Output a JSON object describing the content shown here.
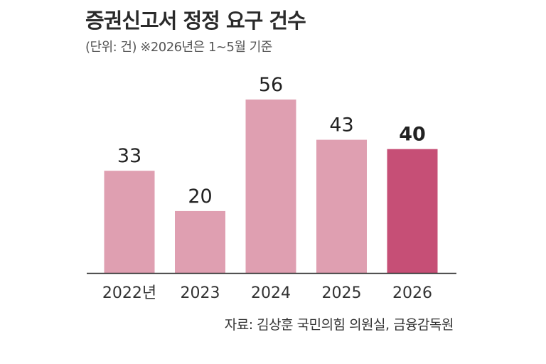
{
  "title": "증권신고서 정정 요구 건수",
  "subtitle": "(단위: 건) ※2026년은 1~5월 기준",
  "source": "자료: 김상훈 국민의힘 의원실, 금융감독원",
  "colors": {
    "bar": "#df9fb1",
    "highlight": "#c64f76",
    "axis": "#333333"
  },
  "chart_data": {
    "type": "bar",
    "categories": [
      "2022년",
      "2023",
      "2024",
      "2025",
      "2026"
    ],
    "values": [
      33,
      20,
      56,
      43,
      40
    ],
    "highlight_index": 4,
    "ylim": [
      0,
      60
    ],
    "grid": false,
    "title": "증권신고서 정정 요구 건수",
    "xlabel": "",
    "ylabel": ""
  }
}
